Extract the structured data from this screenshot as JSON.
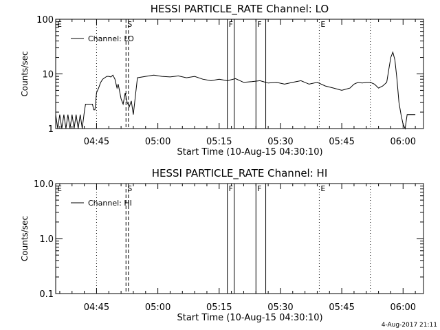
{
  "footer": {
    "timestamp": "4-Aug-2017 21:11"
  },
  "chart_data": [
    {
      "type": "line",
      "title": "HESSI PARTICLE_RATE Channel: LO",
      "xlabel": "Start Time (10-Aug-15 04:30:10)",
      "ylabel": "Counts/sec",
      "yscale": "log",
      "ylim": [
        1,
        100
      ],
      "yticks": [
        1,
        10,
        100
      ],
      "ytick_labels": [
        "1",
        "10",
        "100"
      ],
      "xlim_min": [
        5,
        95
      ],
      "xticks_min": [
        15,
        30,
        45,
        60,
        75,
        90
      ],
      "xtick_labels": [
        "04:45",
        "05:00",
        "05:15",
        "05:30",
        "05:45",
        "06:00"
      ],
      "grid": false,
      "legend_position": "top-left",
      "series": [
        {
          "name": "Channel: LO",
          "color": "#000000",
          "x_min": [
            5.0,
            5.5,
            6.0,
            6.5,
            7.0,
            7.5,
            8.0,
            8.5,
            9.0,
            9.5,
            10.0,
            10.5,
            11.0,
            11.5,
            12.0,
            12.3,
            12.6,
            13.0,
            13.5,
            14.0,
            14.3,
            14.6,
            15.0,
            15.5,
            16.0,
            16.5,
            17.0,
            17.5,
            18.0,
            18.5,
            19.0,
            19.5,
            20.0,
            20.3,
            20.6,
            21.0,
            21.5,
            22.0,
            22.5,
            23.0,
            23.5,
            24.0,
            25,
            27,
            29,
            31,
            33,
            35,
            37,
            39,
            41,
            43,
            45,
            47,
            49,
            51,
            53,
            55,
            57,
            59,
            61,
            63,
            65,
            67,
            69,
            71,
            73,
            75,
            77,
            78,
            79,
            80,
            81,
            82,
            83,
            84,
            85,
            86,
            86.5,
            87,
            87.5,
            88,
            88.5,
            89,
            89.5,
            90,
            90.5,
            91,
            92,
            93
          ],
          "y": [
            1.8,
            1,
            1.8,
            1,
            1.8,
            1,
            1.8,
            1,
            1.8,
            1,
            1.8,
            1,
            1.8,
            1,
            2.0,
            2.8,
            2.8,
            2.8,
            2.8,
            2.8,
            2.2,
            2.2,
            4.5,
            5.5,
            7.0,
            8.0,
            8.5,
            9.0,
            9.0,
            8.8,
            9.5,
            8.0,
            5.5,
            6.5,
            5.0,
            3.5,
            2.8,
            4.5,
            3.0,
            2.5,
            3.2,
            1.8,
            8.5,
            9.0,
            9.5,
            9.0,
            8.8,
            9.2,
            8.5,
            9.0,
            8.0,
            7.5,
            8.0,
            7.5,
            8.2,
            7.0,
            7.2,
            7.5,
            6.8,
            7.0,
            6.5,
            7.0,
            7.5,
            6.5,
            7.0,
            6.0,
            5.5,
            5.0,
            5.5,
            6.5,
            7.0,
            6.8,
            7.0,
            7.0,
            6.5,
            5.5,
            6.0,
            7.0,
            12.0,
            20.0,
            25.0,
            18.0,
            8.0,
            3.0,
            1.8,
            1.2,
            1.0,
            1.8,
            1.8,
            1.8
          ]
        }
      ],
      "markers": [
        {
          "label": "E",
          "x_min": 5.0,
          "line": "none"
        },
        {
          "label": "",
          "x_min": 15.0,
          "line": "dotted"
        },
        {
          "label": "S",
          "x_min": 22.2,
          "line": "dashed"
        },
        {
          "label": "",
          "x_min": 22.8,
          "line": "dashed"
        },
        {
          "label": "F",
          "x_min": 47.0,
          "line": "solid"
        },
        {
          "label": "",
          "x_min": 48.7,
          "line": "solid"
        },
        {
          "label": "F",
          "x_min": 54.0,
          "line": "solid"
        },
        {
          "label": "",
          "x_min": 56.4,
          "line": "solid"
        },
        {
          "label": "E",
          "x_min": 69.5,
          "line": "dotted"
        },
        {
          "label": "",
          "x_min": 82.0,
          "line": "dotted"
        }
      ]
    },
    {
      "type": "line",
      "title": "HESSI PARTICLE_RATE Channel: HI",
      "xlabel": "Start Time (10-Aug-15 04:30:10)",
      "ylabel": "Counts/sec",
      "yscale": "log",
      "ylim": [
        0.1,
        10
      ],
      "yticks": [
        0.1,
        1,
        10
      ],
      "ytick_labels": [
        "0.1",
        "1.0",
        "10.0"
      ],
      "xlim_min": [
        5,
        95
      ],
      "xticks_min": [
        15,
        30,
        45,
        60,
        75,
        90
      ],
      "xtick_labels": [
        "04:45",
        "05:00",
        "05:15",
        "05:30",
        "05:45",
        "06:00"
      ],
      "grid": false,
      "legend_position": "top-left",
      "series": [
        {
          "name": "Channel: HI",
          "color": "#000000",
          "x_min": [],
          "y": []
        }
      ],
      "markers": [
        {
          "label": "E",
          "x_min": 5.0,
          "line": "none"
        },
        {
          "label": "",
          "x_min": 15.0,
          "line": "dotted"
        },
        {
          "label": "S",
          "x_min": 22.2,
          "line": "dashed"
        },
        {
          "label": "",
          "x_min": 22.8,
          "line": "dashed"
        },
        {
          "label": "F",
          "x_min": 47.0,
          "line": "solid"
        },
        {
          "label": "",
          "x_min": 48.7,
          "line": "solid"
        },
        {
          "label": "F",
          "x_min": 54.0,
          "line": "solid"
        },
        {
          "label": "",
          "x_min": 56.4,
          "line": "solid"
        },
        {
          "label": "E",
          "x_min": 69.5,
          "line": "dotted"
        },
        {
          "label": "",
          "x_min": 82.0,
          "line": "dotted"
        }
      ]
    }
  ]
}
